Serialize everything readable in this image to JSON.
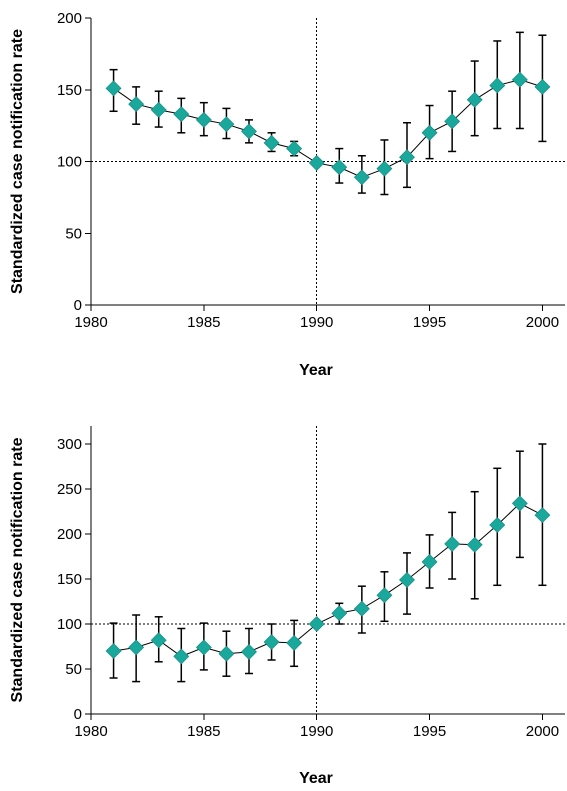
{
  "chart_data": [
    {
      "type": "scatter",
      "xlabel": "Year",
      "ylabel": "Standardized case notification rate",
      "xlim": [
        1980,
        2001
      ],
      "ylim": [
        0,
        200
      ],
      "xticks": [
        1980,
        1985,
        1990,
        1995,
        2000
      ],
      "yticks": [
        0,
        50,
        100,
        150,
        200
      ],
      "reference_lines": {
        "x": 1990,
        "y": 100
      },
      "grid": false,
      "marker_color": "#19a89b",
      "series": [
        {
          "x": [
            1981,
            1982,
            1983,
            1984,
            1985,
            1986,
            1987,
            1988,
            1989,
            1990,
            1991,
            1992,
            1993,
            1994,
            1995,
            1996,
            1997,
            1998,
            1999,
            2000
          ],
          "y": [
            151,
            140,
            136,
            133,
            129,
            126,
            121,
            113,
            109,
            99,
            96,
            89,
            95,
            103,
            120,
            128,
            143,
            153,
            157,
            152
          ],
          "lower": [
            135,
            126,
            124,
            120,
            118,
            116,
            113,
            107,
            104,
            99,
            85,
            78,
            77,
            82,
            102,
            107,
            118,
            123,
            123,
            114
          ],
          "upper": [
            164,
            152,
            149,
            144,
            141,
            137,
            129,
            120,
            114,
            99,
            109,
            104,
            115,
            127,
            139,
            149,
            170,
            184,
            190,
            188
          ]
        }
      ]
    },
    {
      "type": "scatter",
      "xlabel": "Year",
      "ylabel": "Standardized case notification rate",
      "xlim": [
        1980,
        2001
      ],
      "ylim": [
        0,
        320
      ],
      "xticks": [
        1980,
        1985,
        1990,
        1995,
        2000
      ],
      "yticks": [
        0,
        50,
        100,
        150,
        200,
        250,
        300
      ],
      "reference_lines": {
        "x": 1990,
        "y": 100
      },
      "grid": false,
      "marker_color": "#19a89b",
      "series": [
        {
          "x": [
            1981,
            1982,
            1983,
            1984,
            1985,
            1986,
            1987,
            1988,
            1989,
            1990,
            1991,
            1992,
            1993,
            1994,
            1995,
            1996,
            1997,
            1998,
            1999,
            2000
          ],
          "y": [
            70,
            74,
            82,
            64,
            74,
            67,
            69,
            80,
            79,
            100,
            112,
            117,
            132,
            149,
            169,
            189,
            188,
            210,
            234,
            221
          ],
          "lower": [
            40,
            36,
            58,
            36,
            49,
            42,
            45,
            60,
            53,
            100,
            100,
            90,
            103,
            111,
            140,
            150,
            128,
            143,
            174,
            143
          ],
          "upper": [
            101,
            110,
            108,
            95,
            101,
            92,
            95,
            100,
            104,
            100,
            123,
            142,
            158,
            179,
            199,
            224,
            247,
            273,
            292,
            300
          ]
        }
      ]
    }
  ]
}
